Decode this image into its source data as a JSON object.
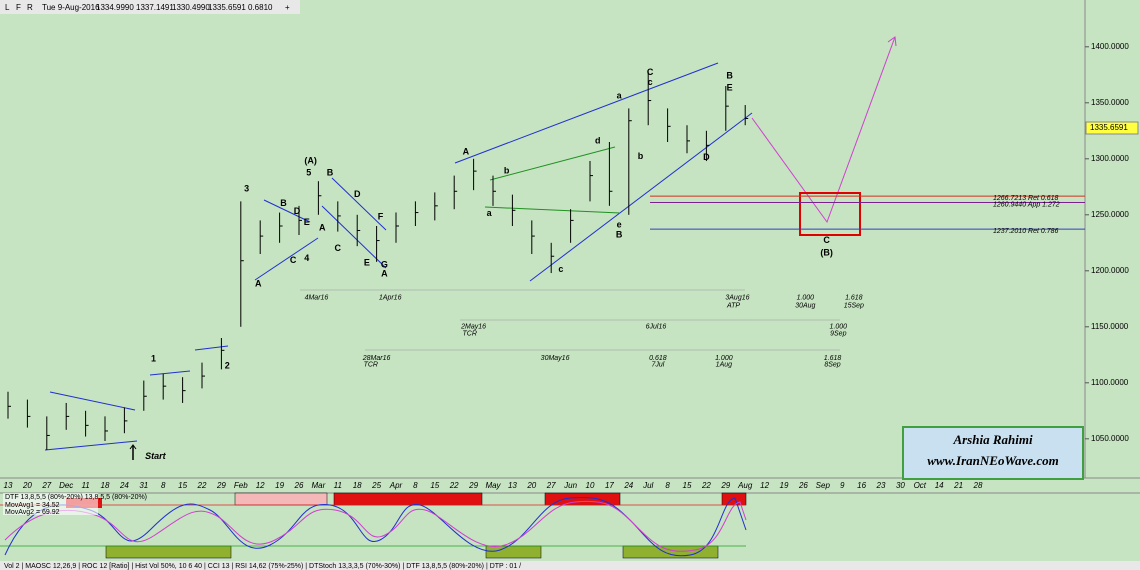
{
  "header": {
    "buttons": [
      "L",
      "F",
      "R"
    ],
    "date": "Tue 9-Aug-2016",
    "open": "1334.9990",
    "high": "1337.1491",
    "low": "1330.4990",
    "close": "1335.6591",
    "change": "0.6810"
  },
  "logo": {
    "name": "Arshia Rahimi",
    "url": "www.IranNEoWave.com"
  },
  "indicator": {
    "title": "DTF 13,8,5,5 (80%-20%) 13,8,5,5 (80%-20%)",
    "mavg1": "MovAvg1 = 34.52",
    "mavg2": "MovAvg2 = 69.92"
  },
  "status_bar": "Vol 2 | MAOSC 12,26,9 | ROC 12 [Ratio] | Hist Vol 50%, 10 6 40 | CCI 13 | RSI 14,62 (75%-25%) | DTStoch 13,3,3,5 (70%-30%) | DTF 13,8,5,5 (80%-20%) | DTP : 01 /",
  "chart_data": {
    "type": "ohlc",
    "color": "#000000",
    "categories": [
      "13",
      "20",
      "27",
      "Dec",
      "11",
      "18",
      "24",
      "31",
      "8",
      "15",
      "22",
      "29",
      "Feb",
      "12",
      "19",
      "26",
      "Mar",
      "11",
      "18",
      "25",
      "Apr",
      "8",
      "15",
      "22",
      "29",
      "May",
      "13",
      "20",
      "27",
      "Jun",
      "10",
      "17",
      "24",
      "Jul",
      "8",
      "15",
      "22",
      "29",
      "Aug",
      "12",
      "19",
      "26",
      "Sep",
      "9",
      "16",
      "23",
      "30",
      "Oct",
      "14",
      "21",
      "28"
    ],
    "high": [
      1092,
      1085,
      1070,
      1082,
      1075,
      1070,
      1078,
      1102,
      1108,
      1105,
      1118,
      1140,
      1262,
      1245,
      1252,
      1258,
      1280,
      1262,
      1250,
      1240,
      1252,
      1262,
      1270,
      1285,
      1300,
      1285,
      1268,
      1245,
      1225,
      1255,
      1298,
      1315,
      1345,
      1378,
      1345,
      1330,
      1325,
      1365,
      1348,
      null,
      null,
      null,
      null,
      null,
      null,
      null,
      null,
      null,
      null,
      null,
      null
    ],
    "low": [
      1068,
      1060,
      1040,
      1058,
      1052,
      1048,
      1055,
      1075,
      1085,
      1082,
      1095,
      1112,
      1150,
      1215,
      1225,
      1232,
      1250,
      1235,
      1222,
      1208,
      1225,
      1240,
      1245,
      1255,
      1272,
      1258,
      1240,
      1215,
      1198,
      1225,
      1262,
      1258,
      1250,
      1330,
      1315,
      1305,
      1298,
      1325,
      1330,
      null,
      null,
      null,
      null,
      null,
      null,
      null,
      null,
      null,
      null,
      null,
      null
    ],
    "close": [
      1079,
      1070,
      1053,
      1070,
      1062,
      1057,
      1066,
      1088,
      1097,
      1093,
      1106,
      1129,
      1209,
      1231,
      1240,
      1245,
      1267,
      1249,
      1236,
      1227,
      1240,
      1252,
      1258,
      1271,
      1289,
      1271,
      1254,
      1231,
      1213,
      1245,
      1285,
      1271,
      1334,
      1352,
      1329,
      1316,
      1312,
      1347,
      1336,
      null,
      null,
      null,
      null,
      null,
      null,
      null,
      null,
      null,
      null,
      null,
      null
    ],
    "ylim": [
      1015,
      1440
    ],
    "yticks": [
      {
        "value": 1050,
        "label": "1050.0000"
      },
      {
        "value": 1100,
        "label": "1100.0000"
      },
      {
        "value": 1150,
        "label": "1150.0000"
      },
      {
        "value": 1200,
        "label": "1200.0000"
      },
      {
        "value": 1250,
        "label": "1250.0000"
      },
      {
        "value": 1300,
        "label": "1300.0000"
      },
      {
        "value": 1350,
        "label": "1350.0000"
      },
      {
        "value": 1400,
        "label": "1400.0000"
      }
    ],
    "levels": [
      {
        "text": "1266.7213 Ret 0.618",
        "value": 1266.7213,
        "color": "#d03020"
      },
      {
        "text": "1260.9440 App 1.272",
        "value": 1260.944,
        "color": "#7a2090"
      },
      {
        "text": "1237.2010 Ret 0.786",
        "value": 1237.201,
        "color": "#3040c0"
      }
    ],
    "annotations": [
      {
        "text": "1",
        "x": 7.5,
        "y": 1121,
        "color": "#1a9a1a"
      },
      {
        "text": "2",
        "x": 11.3,
        "y": 1115,
        "color": "#1a9a1a"
      },
      {
        "text": "3",
        "x": 12.3,
        "y": 1273,
        "color": "#1a9a1a"
      },
      {
        "text": "5",
        "x": 15.5,
        "y": 1287,
        "color": "#1a9a1a"
      },
      {
        "text": "4",
        "x": 15.4,
        "y": 1211,
        "color": "#1a9a1a"
      },
      {
        "text": "A",
        "x": 19.4,
        "y": 1197,
        "color": "#1a9a1a"
      },
      {
        "text": "B",
        "x": 37.2,
        "y": 1374,
        "color": "#1a9a1a"
      },
      {
        "text": "C",
        "x": 42.2,
        "y": 1227,
        "color": "#1a9a1a"
      },
      {
        "text": "A",
        "x": 12.9,
        "y": 1188,
        "color": "#2030c0"
      },
      {
        "text": "B",
        "x": 14.2,
        "y": 1260,
        "color": "#2030c0"
      },
      {
        "text": "C",
        "x": 14.7,
        "y": 1209,
        "color": "#2030c0"
      },
      {
        "text": "D",
        "x": 14.9,
        "y": 1253,
        "color": "#2030c0"
      },
      {
        "text": "E",
        "x": 15.4,
        "y": 1243,
        "color": "#2030c0"
      },
      {
        "text": "A",
        "x": 16.2,
        "y": 1238,
        "color": "#2030c0"
      },
      {
        "text": "B",
        "x": 16.6,
        "y": 1287,
        "color": "#2030c0"
      },
      {
        "text": "C",
        "x": 17.0,
        "y": 1220,
        "color": "#2030c0"
      },
      {
        "text": "D",
        "x": 18.0,
        "y": 1268,
        "color": "#2030c0"
      },
      {
        "text": "E",
        "x": 18.5,
        "y": 1207,
        "color": "#2030c0"
      },
      {
        "text": "F",
        "x": 19.2,
        "y": 1248,
        "color": "#2030c0"
      },
      {
        "text": "G",
        "x": 19.4,
        "y": 1205,
        "color": "#2030c0"
      },
      {
        "text": "A",
        "x": 23.6,
        "y": 1306,
        "color": "#2030c0"
      },
      {
        "text": "C",
        "x": 33.1,
        "y": 1377,
        "color": "#2030c0"
      },
      {
        "text": "E",
        "x": 37.2,
        "y": 1363,
        "color": "#2030c0"
      },
      {
        "text": "D",
        "x": 36.0,
        "y": 1301,
        "color": "#2030c0"
      },
      {
        "text": "B",
        "x": 31.5,
        "y": 1232,
        "color": "#2030c0"
      },
      {
        "text": "(A)",
        "x": 15.6,
        "y": 1298,
        "color": "#000000"
      },
      {
        "text": "(B)",
        "x": 42.2,
        "y": 1216,
        "color": "#000000"
      },
      {
        "text": "a",
        "x": 31.5,
        "y": 1356,
        "color": "#000000"
      },
      {
        "text": "b",
        "x": 25.7,
        "y": 1289,
        "color": "#000000"
      },
      {
        "text": "a",
        "x": 24.8,
        "y": 1251,
        "color": "#000000"
      },
      {
        "text": "c",
        "x": 28.5,
        "y": 1201,
        "color": "#000000"
      },
      {
        "text": "d",
        "x": 30.4,
        "y": 1316,
        "color": "#000000"
      },
      {
        "text": "e",
        "x": 31.5,
        "y": 1241,
        "color": "#000000"
      },
      {
        "text": "c",
        "x": 33.1,
        "y": 1368,
        "color": "#000000"
      },
      {
        "text": "b",
        "x": 32.6,
        "y": 1302,
        "color": "#000000"
      },
      {
        "text": "Start",
        "x": 7.6,
        "y": 1034,
        "color": "#000000"
      }
    ],
    "date_labels": [
      {
        "text": "4Mar16",
        "x": 15.9,
        "y": 1176,
        "color": "#000000"
      },
      {
        "text": "1Apr16",
        "x": 19.7,
        "y": 1176,
        "color": "#000000"
      },
      {
        "text": "3Aug16",
        "x": 37.6,
        "y": 1176,
        "color": "#000000"
      },
      {
        "text": "ATP",
        "x": 37.4,
        "y": 1169,
        "color": "#000000"
      },
      {
        "text": "2May16",
        "x": 24.0,
        "y": 1150,
        "color": "#000000"
      },
      {
        "text": "TCR",
        "x": 23.8,
        "y": 1144,
        "color": "#000000"
      },
      {
        "text": "6Jul16",
        "x": 33.4,
        "y": 1150,
        "color": "#000000"
      },
      {
        "text": "28Mar16",
        "x": 19.0,
        "y": 1122,
        "color": "#000000"
      },
      {
        "text": "TCR",
        "x": 18.7,
        "y": 1116,
        "color": "#000000"
      },
      {
        "text": "30May16",
        "x": 28.2,
        "y": 1122,
        "color": "#000000"
      },
      {
        "text": "0.618",
        "x": 33.5,
        "y": 1122,
        "color": "#d03020"
      },
      {
        "text": "7Jul",
        "x": 33.5,
        "y": 1116,
        "color": "#d03020"
      },
      {
        "text": "1.000",
        "x": 36.9,
        "y": 1122,
        "color": "#1a9a1a"
      },
      {
        "text": "1Aug",
        "x": 36.9,
        "y": 1116,
        "color": "#1a9a1a"
      },
      {
        "text": "1.618",
        "x": 42.5,
        "y": 1122,
        "color": "#d03020"
      },
      {
        "text": "8Sep",
        "x": 42.5,
        "y": 1116,
        "color": "#d03020"
      },
      {
        "text": "1.000",
        "x": 41.1,
        "y": 1176,
        "color": "#1a9a1a"
      },
      {
        "text": "30Aug",
        "x": 41.1,
        "y": 1169,
        "color": "#1a9a1a"
      },
      {
        "text": "1.618",
        "x": 43.6,
        "y": 1176,
        "color": "#d03020"
      },
      {
        "text": "15Sep",
        "x": 43.6,
        "y": 1169,
        "color": "#d03020"
      },
      {
        "text": "1.000",
        "x": 42.8,
        "y": 1150,
        "color": "#1a9a1a"
      },
      {
        "text": "9Sep",
        "x": 42.8,
        "y": 1144,
        "color": "#1a9a1a"
      }
    ]
  }
}
